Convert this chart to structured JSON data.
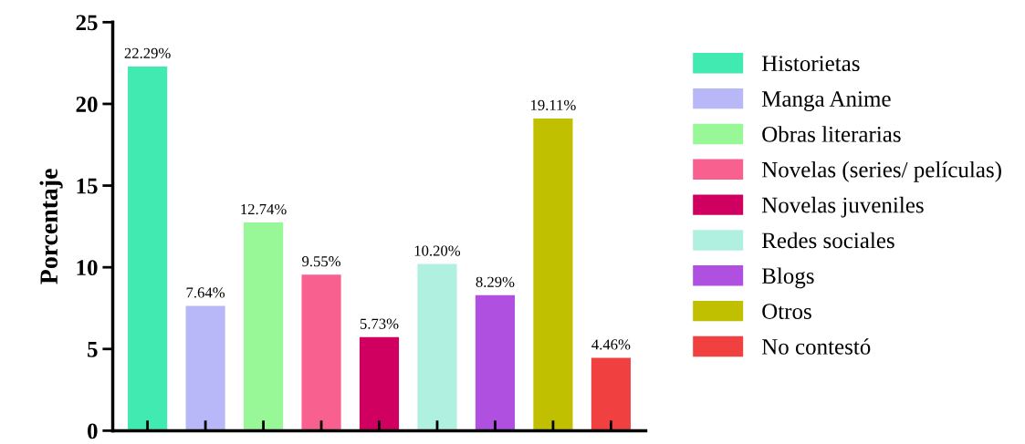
{
  "chart_data": {
    "type": "bar",
    "ylabel": "Porcentaje",
    "categories": [
      null,
      null,
      null,
      null,
      null,
      null,
      null,
      null,
      null
    ],
    "series": [
      {
        "name": "Historietas",
        "color": "#40eab0",
        "values": [
          22.29,
          null,
          null,
          null,
          null,
          null,
          null,
          null,
          null
        ],
        "value_labels": [
          "22.29%",
          null,
          null,
          null,
          null,
          null,
          null,
          null,
          null
        ]
      },
      {
        "name": "Manga Anime",
        "color": "#b8b8f8",
        "values": [
          null,
          7.64,
          null,
          null,
          null,
          null,
          null,
          null,
          null
        ],
        "value_labels": [
          null,
          "7.64%",
          null,
          null,
          null,
          null,
          null,
          null,
          null
        ]
      },
      {
        "name": "Obras literarias",
        "color": "#98f898",
        "values": [
          null,
          null,
          12.74,
          null,
          null,
          null,
          null,
          null,
          null
        ],
        "value_labels": [
          null,
          null,
          "12.74%",
          null,
          null,
          null,
          null,
          null,
          null
        ]
      },
      {
        "name": "Novelas (series/ películas)",
        "color": "#f86090",
        "values": [
          null,
          null,
          null,
          9.55,
          null,
          null,
          null,
          null,
          null
        ],
        "value_labels": [
          null,
          null,
          null,
          "9.55%",
          null,
          null,
          null,
          null,
          null
        ]
      },
      {
        "name": "Novelas juveniles",
        "color": "#d00060",
        "values": [
          null,
          null,
          null,
          null,
          5.73,
          null,
          null,
          null,
          null
        ],
        "value_labels": [
          null,
          null,
          null,
          null,
          "5.73%",
          null,
          null,
          null,
          null
        ]
      },
      {
        "name": "Redes sociales",
        "color": "#b0f0e0",
        "values": [
          null,
          null,
          null,
          null,
          null,
          10.2,
          null,
          null,
          null
        ],
        "value_labels": [
          null,
          null,
          null,
          null,
          null,
          "10.20%",
          null,
          null,
          null
        ]
      },
      {
        "name": "Blogs",
        "color": "#b050e0",
        "values": [
          null,
          null,
          null,
          null,
          null,
          null,
          8.29,
          null,
          null
        ],
        "value_labels": [
          null,
          null,
          null,
          null,
          null,
          null,
          "8.29%",
          null,
          null
        ]
      },
      {
        "name": "Otros",
        "color": "#c0c000",
        "values": [
          null,
          null,
          null,
          null,
          null,
          null,
          null,
          19.11,
          null
        ],
        "value_labels": [
          null,
          null,
          null,
          null,
          null,
          null,
          null,
          "19.11%",
          null
        ]
      },
      {
        "name": "No contestó",
        "color": "#f04040",
        "values": [
          null,
          null,
          null,
          null,
          null,
          null,
          null,
          null,
          4.46
        ],
        "value_labels": [
          null,
          null,
          null,
          null,
          null,
          null,
          null,
          null,
          "4.46%"
        ]
      }
    ],
    "ylim": [
      0,
      25
    ],
    "yticks": [
      0,
      5,
      10,
      15,
      20,
      25
    ],
    "tick_labels": "y",
    "legend": "right",
    "grid": false
  }
}
